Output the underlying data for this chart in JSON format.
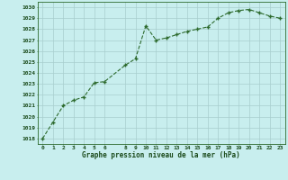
{
  "x": [
    0,
    1,
    2,
    3,
    4,
    5,
    6,
    8,
    9,
    10,
    11,
    12,
    13,
    14,
    15,
    16,
    17,
    18,
    19,
    20,
    21,
    22,
    23
  ],
  "y": [
    1018.0,
    1019.5,
    1021.0,
    1021.5,
    1021.8,
    1023.1,
    1023.2,
    1024.7,
    1025.3,
    1028.3,
    1027.0,
    1027.2,
    1027.5,
    1027.8,
    1028.0,
    1028.2,
    1029.0,
    1029.5,
    1029.7,
    1029.8,
    1029.5,
    1029.2,
    1029.0
  ],
  "xlim": [
    -0.5,
    23.5
  ],
  "ylim": [
    1017.5,
    1030.5
  ],
  "yticks": [
    1018,
    1019,
    1020,
    1021,
    1022,
    1023,
    1024,
    1025,
    1026,
    1027,
    1028,
    1029,
    1030
  ],
  "xticks": [
    0,
    1,
    2,
    3,
    4,
    5,
    6,
    8,
    9,
    10,
    11,
    12,
    13,
    14,
    15,
    16,
    17,
    18,
    19,
    20,
    21,
    22,
    23
  ],
  "line_color": "#2d6a2d",
  "marker_color": "#2d6a2d",
  "bg_color": "#c8eeee",
  "grid_color": "#a8cece",
  "xlabel": "Graphe pression niveau de la mer (hPa)",
  "xlabel_color": "#1a4a1a",
  "tick_color": "#1a4a1a",
  "axis_color": "#2d6a2d",
  "figsize": [
    3.2,
    2.0
  ],
  "dpi": 100
}
